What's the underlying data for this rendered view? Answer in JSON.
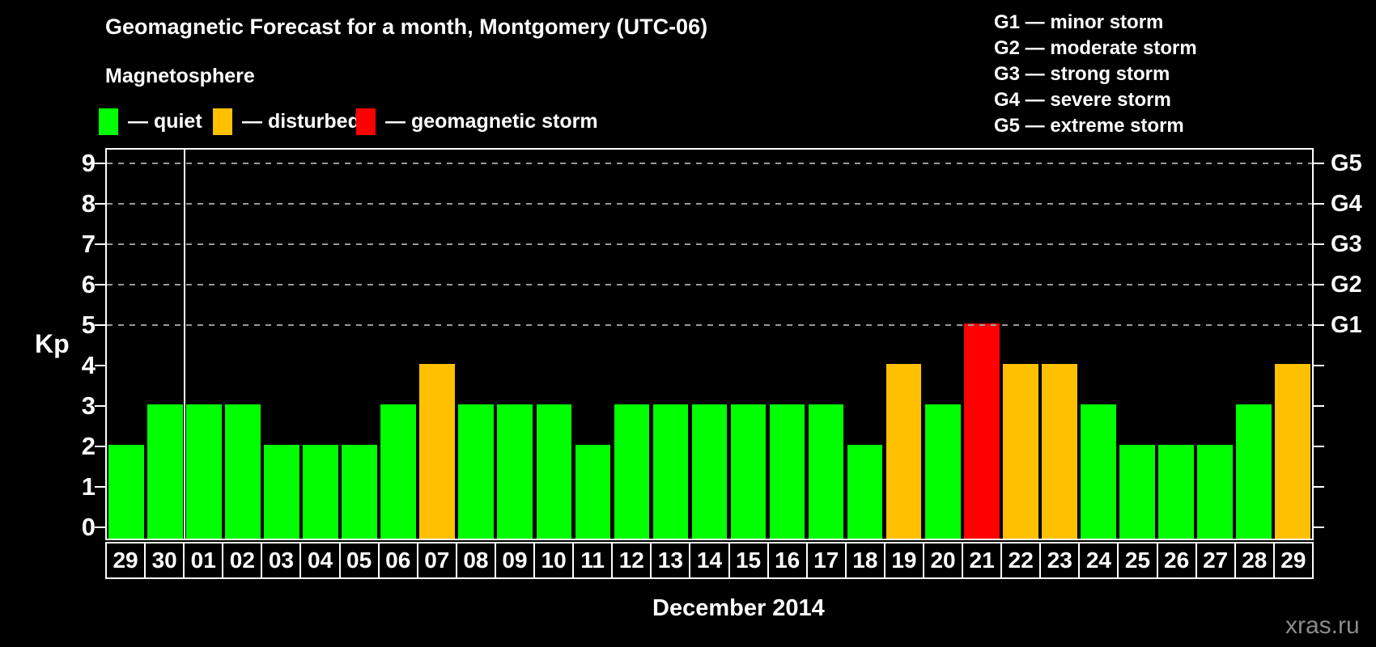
{
  "title": "Geomagnetic Forecast for a month, Montgomery (UTC-06)",
  "legend": {
    "heading": "Magnetosphere",
    "items": [
      {
        "key": "quiet",
        "label": "— quiet",
        "color": "#00ff00"
      },
      {
        "key": "disturbed",
        "label": "— disturbed",
        "color": "#ffc000"
      },
      {
        "key": "storm",
        "label": "— geomagnetic storm",
        "color": "#ff0000"
      }
    ]
  },
  "g_legend": [
    "G1 — minor storm",
    "G2 — moderate storm",
    "G3 — strong storm",
    "G4 — severe storm",
    "G5 — extreme storm"
  ],
  "axes": {
    "y_label": "Kp",
    "y_ticks": [
      "0",
      "1",
      "2",
      "3",
      "4",
      "5",
      "6",
      "7",
      "8",
      "9"
    ],
    "right_axis_labels": [
      {
        "value": 5,
        "label": "G1"
      },
      {
        "value": 6,
        "label": "G2"
      },
      {
        "value": 7,
        "label": "G3"
      },
      {
        "value": 8,
        "label": "G4"
      },
      {
        "value": 9,
        "label": "G5"
      }
    ],
    "x_label": "December 2014"
  },
  "watermark": "xras.ru",
  "chart_data": {
    "type": "bar",
    "title": "Geomagnetic Forecast for a month, Montgomery (UTC-06)",
    "xlabel": "December 2014",
    "ylabel": "Kp",
    "ylim": [
      0,
      9
    ],
    "grid": "dashed horizontal at Kp 5-9 only",
    "gridlines_at": [
      5,
      6,
      7,
      8,
      9
    ],
    "legend_position": "top-left",
    "month_separator_after_index": 1,
    "categories": [
      "29",
      "30",
      "01",
      "02",
      "03",
      "04",
      "05",
      "06",
      "07",
      "08",
      "09",
      "10",
      "11",
      "12",
      "13",
      "14",
      "15",
      "16",
      "17",
      "18",
      "19",
      "20",
      "21",
      "22",
      "23",
      "24",
      "25",
      "26",
      "27",
      "28",
      "29"
    ],
    "values": [
      2,
      3,
      3,
      3,
      2,
      2,
      2,
      3,
      4,
      3,
      3,
      3,
      2,
      3,
      3,
      3,
      3,
      3,
      3,
      2,
      4,
      3,
      5,
      4,
      4,
      3,
      2,
      2,
      2,
      3,
      4
    ],
    "statuses": [
      "quiet",
      "quiet",
      "quiet",
      "quiet",
      "quiet",
      "quiet",
      "quiet",
      "quiet",
      "disturbed",
      "quiet",
      "quiet",
      "quiet",
      "quiet",
      "quiet",
      "quiet",
      "quiet",
      "quiet",
      "quiet",
      "quiet",
      "quiet",
      "disturbed",
      "quiet",
      "storm",
      "disturbed",
      "disturbed",
      "quiet",
      "quiet",
      "quiet",
      "quiet",
      "quiet",
      "disturbed"
    ],
    "status_colors": {
      "quiet": "#00ff00",
      "disturbed": "#ffc000",
      "storm": "#ff0000"
    }
  }
}
